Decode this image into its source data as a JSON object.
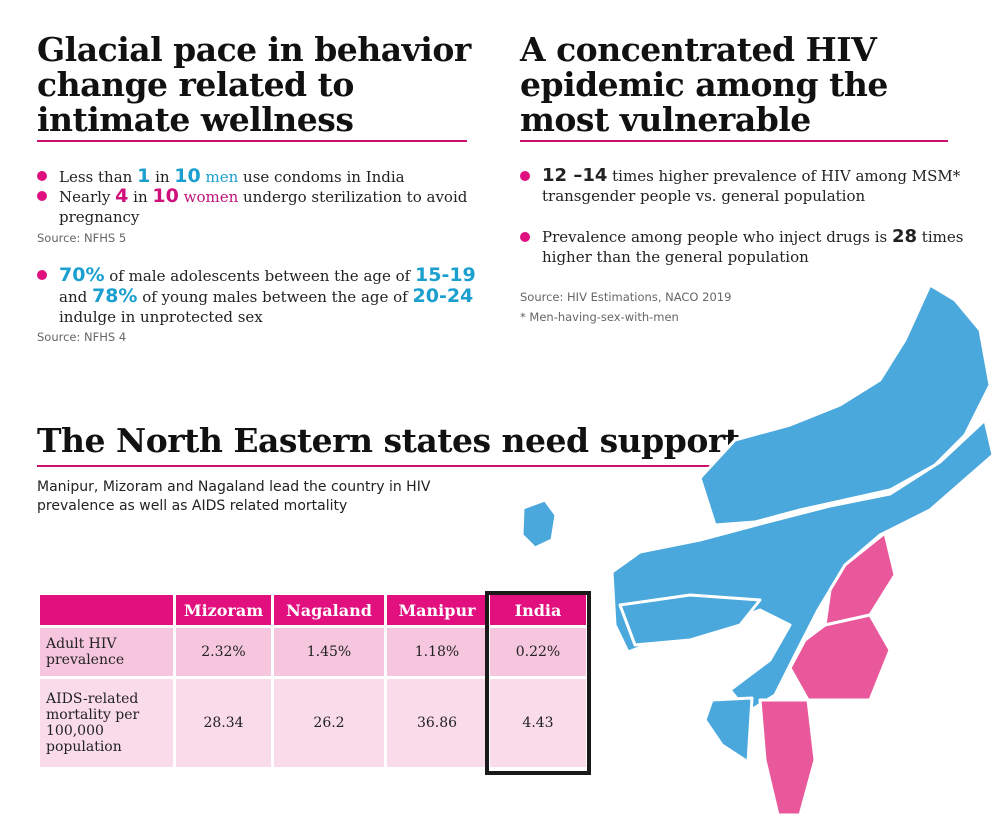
{
  "left_section": {
    "title_lines": [
      "Glacial pace in behavior",
      "change related to",
      "intimate wellness"
    ],
    "bullet1": {
      "pre": "Less than ",
      "n1": "1",
      "mid": " in ",
      "n2": "10",
      "word": " men",
      "post": " use condoms in India"
    },
    "bullet2": {
      "pre": "Nearly ",
      "n1": "4",
      "mid": " in ",
      "n2": "10",
      "word": " women",
      "post": " undergo sterilization to avoid pregnancy"
    },
    "source1": "Source: NFHS 5",
    "bullet3": {
      "p1": "70%",
      "t1": " of male adolescents between the age of ",
      "a1": "15-19",
      "t2": " and ",
      "p2": "78%",
      "t3": " of young males between the age of ",
      "a2": "20-24",
      "t4": " indulge in unprotected sex"
    },
    "source2": "Source:  NFHS 4"
  },
  "right_section": {
    "title_lines": [
      "A concentrated HIV",
      "epidemic among the",
      "most vulnerable"
    ],
    "bullet1": {
      "n": "12 –14",
      "text": " times higher prevalence of HIV among MSM* transgender people vs. general population"
    },
    "bullet2": {
      "pre": "Prevalence among people who inject drugs is ",
      "n": "28",
      "post": " times higher than the general population"
    },
    "source": "Source:  HIV Estimations, NACO 2019",
    "footnote": "* Men-having-sex-with-men"
  },
  "ne_section": {
    "title": "The North Eastern states need support",
    "subtitle": "Manipur, Mizoram and Nagaland lead the country in HIV prevalence as well as AIDS related mortality",
    "table": {
      "columns": [
        "",
        "Mizoram",
        "Nagaland",
        "Manipur",
        "India"
      ],
      "rows": [
        {
          "label": "Adult HIV prevalence",
          "values": [
            "2.32%",
            "1.45%",
            "1.18%",
            "0.22%"
          ]
        },
        {
          "label": "AIDS-related mortality per 100,000 population",
          "values": [
            "28.34",
            "26.2",
            "36.86",
            "4.43"
          ]
        }
      ]
    }
  },
  "colors": {
    "accent_pink": "#e20f7e",
    "accent_cyan": "#1a9fcf",
    "map_blue": "#4aa8dc",
    "map_pink": "#e9589b"
  }
}
